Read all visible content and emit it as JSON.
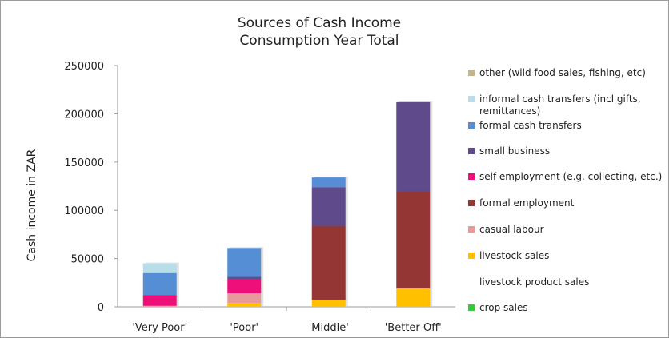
{
  "chart_data": {
    "type": "bar",
    "stacked": true,
    "title": [
      "Sources of Cash Income",
      "Consumption Year Total"
    ],
    "ylabel": "Cash income in ZAR",
    "ylim": [
      0,
      250000
    ],
    "yticks": [
      "0",
      "50000",
      "100000",
      "150000",
      "200000",
      "250000"
    ],
    "categories": [
      "'Very Poor'",
      "'Poor'",
      "'Middle'",
      "'Better-Off'"
    ],
    "grid": false,
    "legend_position": "right",
    "series": [
      {
        "name": "crop sales",
        "color": "#33cc33",
        "values": [
          0,
          0,
          0,
          0
        ]
      },
      {
        "name": "livestock product sales",
        "color": "#ffffff",
        "values": [
          0,
          0,
          0,
          0
        ]
      },
      {
        "name": "livestock sales",
        "color": "#ffc000",
        "values": [
          1000,
          4000,
          7000,
          19000
        ]
      },
      {
        "name": "casual labour",
        "color": "#e89a9a",
        "values": [
          0,
          10000,
          0,
          0
        ]
      },
      {
        "name": "formal employment",
        "color": "#943634",
        "values": [
          0,
          0,
          77000,
          101000
        ]
      },
      {
        "name": "self-employment (e.g. collecting, etc.)",
        "color": "#ee0f7a",
        "values": [
          11000,
          15000,
          0,
          0
        ]
      },
      {
        "name": "small business",
        "color": "#5f4b8b",
        "values": [
          0,
          2000,
          40000,
          92000
        ]
      },
      {
        "name": "formal cash transfers",
        "color": "#558ed5",
        "values": [
          23000,
          30000,
          10000,
          0
        ]
      },
      {
        "name": "informal cash transfers (incl gifts, remittances)",
        "color": "#b7dde8",
        "values": [
          10000,
          0,
          0,
          0
        ]
      },
      {
        "name": "other (wild food sales, fishing, etc)",
        "color": "#c4b48c",
        "values": [
          0,
          0,
          0,
          0
        ]
      }
    ]
  }
}
